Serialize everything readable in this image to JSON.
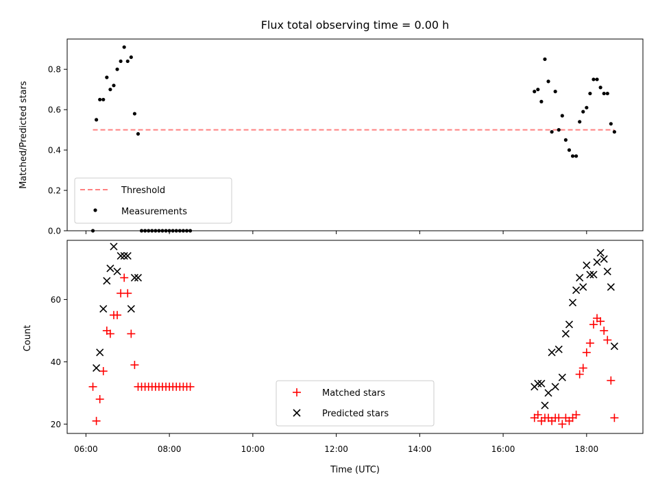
{
  "chart_data": [
    {
      "type": "scatter",
      "title": "Flux total observing time = 0.00 h",
      "xlabel": "",
      "ylabel": "Matched/Predicted stars",
      "ylim": [
        0,
        0.95
      ],
      "yticks": [
        "0.0",
        "0.2",
        "0.4",
        "0.6",
        "0.8"
      ],
      "xlim_hours": [
        5.55,
        19.35
      ],
      "threshold": {
        "name": "Threshold",
        "value": 0.5,
        "x_start": "06:10",
        "x_end": "18:40",
        "color": "#ff8080"
      },
      "series": [
        {
          "name": "Measurements",
          "color": "#000000",
          "marker": "dot",
          "points": [
            [
              "06:10",
              0.0
            ],
            [
              "06:15",
              0.55
            ],
            [
              "06:20",
              0.65
            ],
            [
              "06:25",
              0.65
            ],
            [
              "06:30",
              0.76
            ],
            [
              "06:35",
              0.7
            ],
            [
              "06:40",
              0.72
            ],
            [
              "06:45",
              0.8
            ],
            [
              "06:50",
              0.84
            ],
            [
              "06:55",
              0.91
            ],
            [
              "07:00",
              0.84
            ],
            [
              "07:05",
              0.86
            ],
            [
              "07:10",
              0.58
            ],
            [
              "07:15",
              0.48
            ],
            [
              "07:20",
              0.0
            ],
            [
              "07:25",
              0.0
            ],
            [
              "07:30",
              0.0
            ],
            [
              "07:35",
              0.0
            ],
            [
              "07:40",
              0.0
            ],
            [
              "07:45",
              0.0
            ],
            [
              "07:50",
              0.0
            ],
            [
              "07:55",
              0.0
            ],
            [
              "08:00",
              0.0
            ],
            [
              "08:05",
              0.0
            ],
            [
              "08:10",
              0.0
            ],
            [
              "08:15",
              0.0
            ],
            [
              "08:20",
              0.0
            ],
            [
              "08:25",
              0.0
            ],
            [
              "08:30",
              0.0
            ],
            [
              "16:45",
              0.69
            ],
            [
              "16:50",
              0.7
            ],
            [
              "16:55",
              0.64
            ],
            [
              "17:00",
              0.85
            ],
            [
              "17:05",
              0.74
            ],
            [
              "17:10",
              0.49
            ],
            [
              "17:15",
              0.69
            ],
            [
              "17:20",
              0.5
            ],
            [
              "17:25",
              0.57
            ],
            [
              "17:30",
              0.45
            ],
            [
              "17:35",
              0.4
            ],
            [
              "17:40",
              0.37
            ],
            [
              "17:45",
              0.37
            ],
            [
              "17:50",
              0.54
            ],
            [
              "17:55",
              0.59
            ],
            [
              "18:00",
              0.61
            ],
            [
              "18:05",
              0.68
            ],
            [
              "18:10",
              0.75
            ],
            [
              "18:15",
              0.75
            ],
            [
              "18:20",
              0.71
            ],
            [
              "18:25",
              0.68
            ],
            [
              "18:30",
              0.68
            ],
            [
              "18:35",
              0.53
            ],
            [
              "18:40",
              0.49
            ]
          ]
        }
      ],
      "legend_placement": "lower-left",
      "grid": false
    },
    {
      "type": "scatter",
      "title": "",
      "xlabel": "Time (UTC)",
      "ylabel": "Count",
      "ylim": [
        17,
        79
      ],
      "yticks": [
        "20",
        "40",
        "60"
      ],
      "xlim_hours": [
        5.55,
        19.35
      ],
      "xticks": [
        "06:00",
        "08:00",
        "10:00",
        "12:00",
        "14:00",
        "16:00",
        "18:00"
      ],
      "series": [
        {
          "name": "Matched stars",
          "color": "#ff0000",
          "marker": "plus",
          "points": [
            [
              "06:10",
              32
            ],
            [
              "06:15",
              21
            ],
            [
              "06:20",
              28
            ],
            [
              "06:25",
              37
            ],
            [
              "06:30",
              50
            ],
            [
              "06:35",
              49
            ],
            [
              "06:40",
              55
            ],
            [
              "06:45",
              55
            ],
            [
              "06:50",
              62
            ],
            [
              "06:55",
              67
            ],
            [
              "07:00",
              62
            ],
            [
              "07:05",
              49
            ],
            [
              "07:10",
              39
            ],
            [
              "07:15",
              32
            ],
            [
              "07:20",
              32
            ],
            [
              "07:25",
              32
            ],
            [
              "07:30",
              32
            ],
            [
              "07:35",
              32
            ],
            [
              "07:40",
              32
            ],
            [
              "07:45",
              32
            ],
            [
              "07:50",
              32
            ],
            [
              "07:55",
              32
            ],
            [
              "08:00",
              32
            ],
            [
              "08:05",
              32
            ],
            [
              "08:10",
              32
            ],
            [
              "08:15",
              32
            ],
            [
              "08:20",
              32
            ],
            [
              "08:25",
              32
            ],
            [
              "08:30",
              32
            ],
            [
              "16:45",
              22
            ],
            [
              "16:50",
              23
            ],
            [
              "16:55",
              21
            ],
            [
              "17:00",
              22
            ],
            [
              "17:05",
              22
            ],
            [
              "17:10",
              21
            ],
            [
              "17:15",
              22
            ],
            [
              "17:20",
              22
            ],
            [
              "17:25",
              20
            ],
            [
              "17:30",
              22
            ],
            [
              "17:35",
              21
            ],
            [
              "17:40",
              22
            ],
            [
              "17:45",
              23
            ],
            [
              "17:50",
              36
            ],
            [
              "17:55",
              38
            ],
            [
              "18:00",
              43
            ],
            [
              "18:05",
              46
            ],
            [
              "18:10",
              52
            ],
            [
              "18:15",
              54
            ],
            [
              "18:20",
              53
            ],
            [
              "18:25",
              50
            ],
            [
              "18:30",
              47
            ],
            [
              "18:35",
              34
            ],
            [
              "18:40",
              22
            ]
          ]
        },
        {
          "name": "Predicted stars",
          "color": "#000000",
          "marker": "x",
          "points": [
            [
              "06:15",
              38
            ],
            [
              "06:20",
              43
            ],
            [
              "06:25",
              57
            ],
            [
              "06:30",
              66
            ],
            [
              "06:35",
              70
            ],
            [
              "06:40",
              77
            ],
            [
              "06:45",
              69
            ],
            [
              "06:50",
              74
            ],
            [
              "06:55",
              74
            ],
            [
              "07:00",
              74
            ],
            [
              "07:05",
              57
            ],
            [
              "07:10",
              67
            ],
            [
              "07:15",
              67
            ],
            [
              "16:45",
              32
            ],
            [
              "16:50",
              33
            ],
            [
              "16:55",
              33
            ],
            [
              "17:00",
              26
            ],
            [
              "17:05",
              30
            ],
            [
              "17:10",
              43
            ],
            [
              "17:15",
              32
            ],
            [
              "17:20",
              44
            ],
            [
              "17:25",
              35
            ],
            [
              "17:30",
              49
            ],
            [
              "17:35",
              52
            ],
            [
              "17:40",
              59
            ],
            [
              "17:45",
              63
            ],
            [
              "17:50",
              67
            ],
            [
              "17:55",
              64
            ],
            [
              "18:00",
              71
            ],
            [
              "18:05",
              68
            ],
            [
              "18:10",
              68
            ],
            [
              "18:15",
              72
            ],
            [
              "18:20",
              75
            ],
            [
              "18:25",
              73
            ],
            [
              "18:30",
              69
            ],
            [
              "18:35",
              64
            ],
            [
              "18:40",
              45
            ]
          ]
        }
      ],
      "legend_placement": "lower-center",
      "grid": false
    }
  ]
}
